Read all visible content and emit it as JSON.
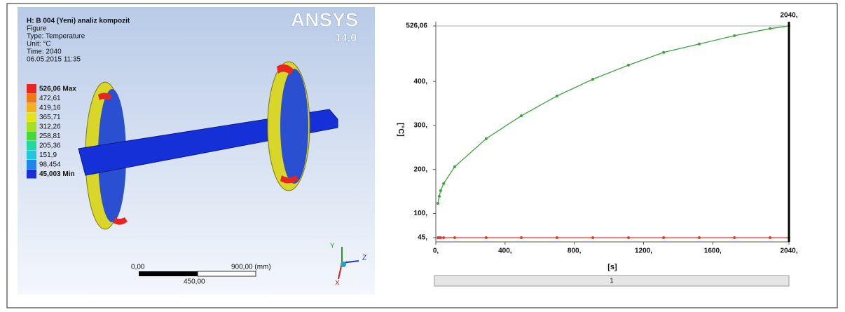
{
  "left_panel": {
    "logo": "ANSYS",
    "version": "14.0",
    "header": [
      "H: B 004 (Yeni) analiz kompozit",
      "Figure",
      "Type: Temperature",
      "Unit: °C",
      "Time: 2040",
      "06.05.2015 11:35"
    ],
    "legend": [
      {
        "label": "526,06 Max",
        "color": "#e8261f"
      },
      {
        "label": "472,61",
        "color": "#f07a12"
      },
      {
        "label": "419,16",
        "color": "#f3b21a"
      },
      {
        "label": "365,71",
        "color": "#e6e418"
      },
      {
        "label": "312,26",
        "color": "#a6e020"
      },
      {
        "label": "258,81",
        "color": "#45d83a"
      },
      {
        "label": "205,36",
        "color": "#1ed9a0"
      },
      {
        "label": "151,9",
        "color": "#1ec8e0"
      },
      {
        "label": "98,454",
        "color": "#1e88e8"
      },
      {
        "label": "45,003 Min",
        "color": "#1a2fd8"
      }
    ],
    "scale": {
      "start": "0,00",
      "end": "900,00 (mm)",
      "mid": "450,00"
    },
    "triad": {
      "y": "Y",
      "z": "Z",
      "x": "X"
    }
  },
  "chart_data": {
    "type": "line",
    "x_label": "[s]",
    "y_label": "[°C]",
    "x": [
      12,
      20,
      28,
      45,
      109,
      291,
      494,
      700,
      907,
      1113,
      1316,
      1522,
      1725,
      1931,
      2040
    ],
    "series": [
      {
        "color": "#3aa53a",
        "values": [
          123,
          139,
          152,
          168,
          206,
          270,
          322,
          367,
          405,
          437,
          466,
          485,
          504,
          520,
          526.06
        ]
      },
      {
        "color": "#e03a3a",
        "values": [
          45.003,
          45.003,
          45.003,
          45.003,
          45.003,
          45.003,
          45.003,
          45.003,
          45.003,
          45.003,
          45.003,
          45.003,
          45.003,
          45.003,
          45.003
        ]
      }
    ],
    "xlim": [
      0,
      2040
    ],
    "xticks": [
      {
        "value": 0,
        "label": "0,"
      },
      {
        "value": 400,
        "label": "400,"
      },
      {
        "value": 800,
        "label": "800,"
      },
      {
        "value": 1200,
        "label": "1200,"
      },
      {
        "value": 1600,
        "label": "1600,"
      },
      {
        "value": 2040,
        "label": "2040,"
      }
    ],
    "ylim": [
      45,
      526.06
    ],
    "yticks": [
      {
        "value": 45,
        "label": "45,"
      },
      {
        "value": 100,
        "label": "100,"
      },
      {
        "value": 200,
        "label": "200,"
      },
      {
        "value": 300,
        "label": "300,"
      },
      {
        "value": 400,
        "label": "400,"
      },
      {
        "value": 526.06,
        "label": "526,06"
      }
    ],
    "cursor": {
      "value": 2040,
      "label": "2040,"
    },
    "slider": "1"
  }
}
